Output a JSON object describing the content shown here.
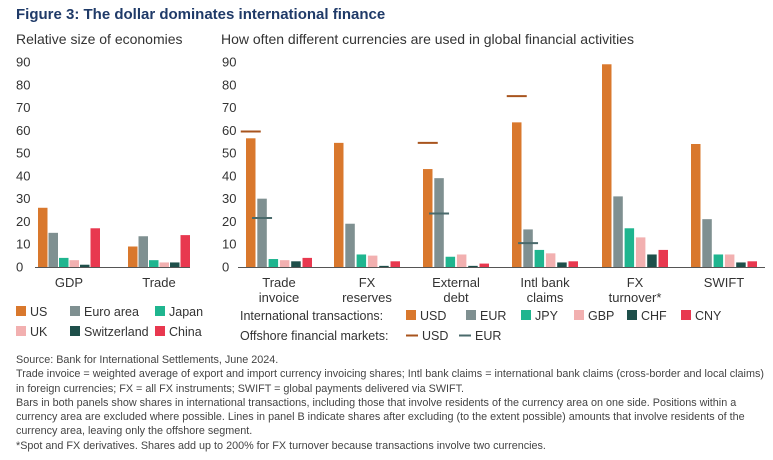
{
  "figure_title": "Figure 3: The dollar dominates international finance",
  "panel_a_title": "Relative size of economies",
  "panel_b_title": "How often different currencies are used in global financial activities",
  "colors": {
    "US": "#d9782d",
    "Euro area": "#7f9091",
    "Japan": "#1fb58f",
    "UK": "#f2b0b0",
    "Switzerland": "#1e4f4a",
    "China": "#e8384f",
    "USD": "#d9782d",
    "EUR": "#7f9091",
    "JPY": "#1fb58f",
    "GBP": "#f2b0b0",
    "CHF": "#1e4f4a",
    "CNY": "#e8384f",
    "offshore_usd": "#a8541e",
    "offshore_eur": "#4a6a6b"
  },
  "legend_a": [
    "US",
    "Euro area",
    "Japan",
    "UK",
    "Switzerland",
    "China"
  ],
  "legend_b": {
    "transactions_label": "International transactions:",
    "offshore_label": "Offshore financial markets:",
    "transactions": [
      "USD",
      "EUR",
      "JPY",
      "GBP",
      "CHF",
      "CNY"
    ],
    "offshore": [
      "USD",
      "EUR"
    ]
  },
  "notes": [
    "Source: Bank for International Settlements, June 2024.",
    "Trade invoice = weighted average of export and import currency invoicing shares; Intl bank claims = international bank claims (cross-border and local claims) in foreign currencies; FX = all FX instruments; SWIFT = global payments delivered via SWIFT.",
    "Bars in both panels show shares in international transactions, including those that involve residents of the currency area on one side. Positions within a currency area are excluded where possible. Lines in panel B indicate shares after excluding (to the extent possible) amounts that involve residents of the currency area, leaving only the offshore segment.",
    "*Spot and FX derivatives. Shares add up to 200% for FX turnover because transactions involve two currencies."
  ],
  "chart_data": [
    {
      "type": "bar",
      "title": "Relative size of economies",
      "ylim": [
        0,
        90
      ],
      "yticks": [
        0,
        10,
        20,
        30,
        40,
        50,
        60,
        70,
        80,
        90
      ],
      "categories": [
        "GDP",
        "Trade"
      ],
      "series": [
        {
          "name": "US",
          "values": [
            26,
            9
          ]
        },
        {
          "name": "Euro area",
          "values": [
            15,
            13.5
          ]
        },
        {
          "name": "Japan",
          "values": [
            4,
            3
          ]
        },
        {
          "name": "UK",
          "values": [
            3,
            2
          ]
        },
        {
          "name": "Switzerland",
          "values": [
            1,
            2
          ]
        },
        {
          "name": "China",
          "values": [
            17,
            14
          ]
        }
      ]
    },
    {
      "type": "bar",
      "title": "How often different currencies are used in global financial activities",
      "ylim": [
        0,
        90
      ],
      "yticks": [
        0,
        10,
        20,
        30,
        40,
        50,
        60,
        70,
        80,
        90
      ],
      "categories": [
        [
          "Trade",
          "invoice"
        ],
        [
          "FX",
          "reserves"
        ],
        [
          "External",
          "debt"
        ],
        [
          "Intl bank",
          "claims"
        ],
        [
          "FX",
          "turnover*"
        ],
        [
          "SWIFT"
        ]
      ],
      "series": [
        {
          "name": "USD",
          "values": [
            56.5,
            54.5,
            43,
            63.5,
            89,
            54
          ]
        },
        {
          "name": "EUR",
          "values": [
            30,
            19,
            39,
            16.5,
            31,
            21
          ]
        },
        {
          "name": "JPY",
          "values": [
            3.5,
            5.5,
            4.5,
            7.5,
            17,
            5.5
          ]
        },
        {
          "name": "GBP",
          "values": [
            3,
            5,
            5.5,
            6,
            13,
            5.5
          ]
        },
        {
          "name": "CHF",
          "values": [
            2.5,
            0.5,
            0.5,
            2,
            5.5,
            2
          ]
        },
        {
          "name": "CNY",
          "values": [
            4,
            2.5,
            1.5,
            2.5,
            7.5,
            2.5
          ]
        }
      ],
      "offshore_lines": [
        {
          "name": "USD",
          "values": [
            59.5,
            null,
            54.5,
            75,
            null,
            null
          ]
        },
        {
          "name": "EUR",
          "values": [
            21.5,
            null,
            23.5,
            10.5,
            null,
            null
          ]
        }
      ]
    }
  ]
}
